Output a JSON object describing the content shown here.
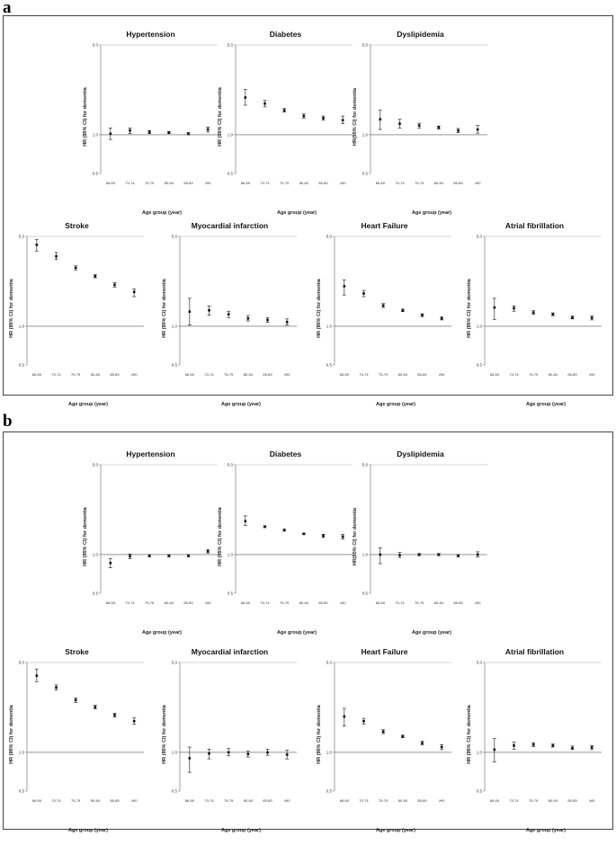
{
  "panels": [
    {
      "label": "a",
      "charts": [
        {
          "title": "Hypertension",
          "categories": [
            "66-69",
            "70-74",
            "75-79",
            "80-84",
            "85-89",
            "≥90"
          ],
          "hr": [
            1.02,
            1.08,
            1.05,
            1.04,
            1.02,
            1.1
          ],
          "lower": [
            0.92,
            1.02,
            1.02,
            1.02,
            1.0,
            1.05
          ],
          "upper": [
            1.13,
            1.13,
            1.08,
            1.06,
            1.04,
            1.15
          ]
        },
        {
          "title": "Diabetes",
          "categories": [
            "66-69",
            "70-74",
            "75-79",
            "80-84",
            "85-89",
            "≥90"
          ],
          "hr": [
            1.95,
            1.75,
            1.55,
            1.4,
            1.35,
            1.3
          ],
          "lower": [
            1.7,
            1.65,
            1.5,
            1.35,
            1.3,
            1.22
          ],
          "upper": [
            2.25,
            1.85,
            1.6,
            1.45,
            1.4,
            1.4
          ]
        },
        {
          "title": "Dyslipidemia",
          "categories": [
            "66-69",
            "70-74",
            "75-79",
            "80-84",
            "85-89",
            "≥90"
          ],
          "hr": [
            1.32,
            1.22,
            1.18,
            1.14,
            1.08,
            1.1
          ],
          "lower": [
            1.1,
            1.13,
            1.13,
            1.11,
            1.04,
            1.03
          ],
          "upper": [
            1.55,
            1.32,
            1.23,
            1.17,
            1.12,
            1.18
          ]
        }
      ],
      "row2": [
        {
          "title": "Stroke",
          "categories": [
            "66-69",
            "70-74",
            "75-79",
            "80-84",
            "85-89",
            "≥90"
          ],
          "hr": [
            4.3,
            3.5,
            2.85,
            2.45,
            2.1,
            1.85
          ],
          "lower": [
            3.85,
            3.3,
            2.75,
            2.38,
            2.02,
            1.7
          ],
          "upper": [
            4.75,
            3.75,
            2.95,
            2.52,
            2.18,
            1.95
          ]
        },
        {
          "title": "Myocardial infarction",
          "categories": [
            "66-69",
            "70-74",
            "75-79",
            "80-84",
            "85-89",
            "≥90"
          ],
          "hr": [
            1.3,
            1.33,
            1.24,
            1.15,
            1.12,
            1.08
          ],
          "lower": [
            1.02,
            1.22,
            1.17,
            1.1,
            1.07,
            1.02
          ],
          "upper": [
            1.65,
            1.44,
            1.31,
            1.21,
            1.17,
            1.14
          ]
        },
        {
          "title": "Heart Failure",
          "categories": [
            "66-69",
            "70-74",
            "75-79",
            "80-84",
            "85-89",
            "≥90"
          ],
          "hr": [
            2.05,
            1.8,
            1.45,
            1.33,
            1.22,
            1.15
          ],
          "lower": [
            1.75,
            1.7,
            1.4,
            1.3,
            1.19,
            1.12
          ],
          "upper": [
            2.3,
            1.9,
            1.5,
            1.36,
            1.25,
            1.18
          ]
        },
        {
          "title": "Atrial fibrillation",
          "categories": [
            "66-69",
            "70-74",
            "75-79",
            "80-84",
            "85-89",
            "≥90"
          ],
          "hr": [
            1.4,
            1.38,
            1.28,
            1.24,
            1.17,
            1.16
          ],
          "lower": [
            1.13,
            1.31,
            1.24,
            1.21,
            1.14,
            1.12
          ],
          "upper": [
            1.65,
            1.44,
            1.32,
            1.27,
            1.2,
            1.2
          ]
        }
      ]
    },
    {
      "label": "b",
      "charts": [
        {
          "title": "Hypertension",
          "categories": [
            "66-69",
            "70-74",
            "75-79",
            "80-84",
            "85-89",
            "≥90"
          ],
          "hr": [
            0.86,
            0.97,
            0.98,
            0.98,
            0.98,
            1.06
          ],
          "lower": [
            0.79,
            0.93,
            0.96,
            0.96,
            0.96,
            1.03
          ],
          "upper": [
            0.93,
            1.01,
            1.0,
            1.0,
            1.0,
            1.09
          ]
        },
        {
          "title": "Diabetes",
          "categories": [
            "66-69",
            "70-74",
            "75-79",
            "80-84",
            "85-89",
            "≥90"
          ],
          "hr": [
            1.82,
            1.65,
            1.55,
            1.45,
            1.4,
            1.38
          ],
          "lower": [
            1.68,
            1.62,
            1.52,
            1.43,
            1.36,
            1.32
          ],
          "upper": [
            2.0,
            1.68,
            1.58,
            1.47,
            1.44,
            1.44
          ]
        },
        {
          "title": "Dyslipidemia",
          "categories": [
            "66-69",
            "70-74",
            "75-79",
            "80-84",
            "85-89",
            "≥90"
          ],
          "hr": [
            1.0,
            0.99,
            1.0,
            1.0,
            0.98,
            1.0
          ],
          "lower": [
            0.85,
            0.95,
            0.98,
            0.98,
            0.96,
            0.96
          ],
          "upper": [
            1.13,
            1.04,
            1.02,
            1.02,
            1.0,
            1.05
          ]
        }
      ],
      "row2": [
        {
          "title": "Stroke",
          "categories": [
            "66-69",
            "70-74",
            "75-79",
            "80-84",
            "85-89",
            "≥90"
          ],
          "hr": [
            3.95,
            3.2,
            2.55,
            2.25,
            1.95,
            1.75
          ],
          "lower": [
            3.55,
            3.05,
            2.45,
            2.18,
            1.88,
            1.65
          ],
          "upper": [
            4.45,
            3.35,
            2.65,
            2.32,
            2.02,
            1.85
          ]
        },
        {
          "title": "Myocardial infarction",
          "categories": [
            "66-69",
            "70-74",
            "75-79",
            "80-84",
            "85-89",
            "≥90"
          ],
          "hr": [
            0.9,
            0.98,
            1.0,
            0.97,
            1.0,
            0.96
          ],
          "lower": [
            0.7,
            0.89,
            0.94,
            0.92,
            0.95,
            0.89
          ],
          "upper": [
            1.1,
            1.06,
            1.07,
            1.02,
            1.06,
            1.04
          ]
        },
        {
          "title": "Heart Failure",
          "categories": [
            "66-69",
            "70-74",
            "75-79",
            "80-84",
            "85-89",
            "≥90"
          ],
          "hr": [
            1.9,
            1.75,
            1.45,
            1.33,
            1.18,
            1.1
          ],
          "lower": [
            1.6,
            1.66,
            1.4,
            1.3,
            1.14,
            1.05
          ],
          "upper": [
            2.2,
            1.84,
            1.5,
            1.36,
            1.22,
            1.15
          ]
        },
        {
          "title": "Atrial fibrillation",
          "categories": [
            "66-69",
            "70-74",
            "75-79",
            "80-84",
            "85-89",
            "≥90"
          ],
          "hr": [
            1.05,
            1.13,
            1.15,
            1.13,
            1.08,
            1.09
          ],
          "lower": [
            0.84,
            1.06,
            1.11,
            1.1,
            1.05,
            1.05
          ],
          "upper": [
            1.28,
            1.2,
            1.19,
            1.16,
            1.12,
            1.13
          ]
        }
      ]
    }
  ],
  "axis": {
    "ylabel": "HR (95% CI) for dementia",
    "ylabel_dyslipidemia": "HR(95% CI) for dementia",
    "xlabel": "Age group (year)",
    "yticks": [
      "0.5",
      "1.0",
      "5.0"
    ],
    "ylim": [
      0.5,
      5.0
    ],
    "reference_line": 1.0,
    "scale": "log"
  },
  "chart_data": [
    {
      "type": "scatter",
      "panel": "a",
      "title": "Hypertension",
      "categories": [
        "66-69",
        "70-74",
        "75-79",
        "80-84",
        "85-89",
        "≥90"
      ],
      "series": [
        {
          "name": "HR",
          "values": [
            1.02,
            1.08,
            1.05,
            1.04,
            1.02,
            1.1
          ]
        }
      ],
      "xlabel": "Age group (year)",
      "ylabel": "HR (95% CI) for dementia",
      "ylim": [
        0.5,
        5.0
      ]
    },
    {
      "type": "scatter",
      "panel": "a",
      "title": "Diabetes",
      "categories": [
        "66-69",
        "70-74",
        "75-79",
        "80-84",
        "85-89",
        "≥90"
      ],
      "series": [
        {
          "name": "HR",
          "values": [
            1.95,
            1.75,
            1.55,
            1.4,
            1.35,
            1.3
          ]
        }
      ],
      "xlabel": "Age group (year)",
      "ylabel": "HR (95% CI) for dementia",
      "ylim": [
        0.5,
        5.0
      ]
    },
    {
      "type": "scatter",
      "panel": "a",
      "title": "Dyslipidemia",
      "categories": [
        "66-69",
        "70-74",
        "75-79",
        "80-84",
        "85-89",
        "≥90"
      ],
      "series": [
        {
          "name": "HR",
          "values": [
            1.32,
            1.22,
            1.18,
            1.14,
            1.08,
            1.1
          ]
        }
      ],
      "xlabel": "Age group (year)",
      "ylabel": "HR(95% CI) for dementia",
      "ylim": [
        0.5,
        5.0
      ]
    },
    {
      "type": "scatter",
      "panel": "a",
      "title": "Stroke",
      "categories": [
        "66-69",
        "70-74",
        "75-79",
        "80-84",
        "85-89",
        "≥90"
      ],
      "series": [
        {
          "name": "HR",
          "values": [
            4.3,
            3.5,
            2.85,
            2.45,
            2.1,
            1.85
          ]
        }
      ],
      "xlabel": "Age group (year)",
      "ylabel": "HR (95% CI) for dementia",
      "ylim": [
        0.5,
        5.0
      ]
    },
    {
      "type": "scatter",
      "panel": "a",
      "title": "Myocardial infarction",
      "categories": [
        "66-69",
        "70-74",
        "75-79",
        "80-84",
        "85-89",
        "≥90"
      ],
      "series": [
        {
          "name": "HR",
          "values": [
            1.3,
            1.33,
            1.24,
            1.15,
            1.12,
            1.08
          ]
        }
      ],
      "xlabel": "Age group (year)",
      "ylabel": "HR (95% CI) for dementia",
      "ylim": [
        0.5,
        5.0
      ]
    },
    {
      "type": "scatter",
      "panel": "a",
      "title": "Heart Failure",
      "categories": [
        "66-69",
        "70-74",
        "75-79",
        "80-84",
        "85-89",
        "≥90"
      ],
      "series": [
        {
          "name": "HR",
          "values": [
            2.05,
            1.8,
            1.45,
            1.33,
            1.22,
            1.15
          ]
        }
      ],
      "xlabel": "Age group (year)",
      "ylabel": "HR (95% CI) for dementia",
      "ylim": [
        0.5,
        5.0
      ]
    },
    {
      "type": "scatter",
      "panel": "a",
      "title": "Atrial fibrillation",
      "categories": [
        "66-69",
        "70-74",
        "75-79",
        "80-84",
        "85-89",
        "≥90"
      ],
      "series": [
        {
          "name": "HR",
          "values": [
            1.4,
            1.38,
            1.28,
            1.24,
            1.17,
            1.16
          ]
        }
      ],
      "xlabel": "Age group (year)",
      "ylabel": "HR (95% CI) for dementia",
      "ylim": [
        0.5,
        5.0
      ]
    },
    {
      "type": "scatter",
      "panel": "b",
      "title": "Hypertension",
      "categories": [
        "66-69",
        "70-74",
        "75-79",
        "80-84",
        "85-89",
        "≥90"
      ],
      "series": [
        {
          "name": "HR",
          "values": [
            0.86,
            0.97,
            0.98,
            0.98,
            0.98,
            1.06
          ]
        }
      ],
      "xlabel": "Age group (year)",
      "ylabel": "HR (95% CI) for dementia",
      "ylim": [
        0.5,
        5.0
      ]
    },
    {
      "type": "scatter",
      "panel": "b",
      "title": "Diabetes",
      "categories": [
        "66-69",
        "70-74",
        "75-79",
        "80-84",
        "85-89",
        "≥90"
      ],
      "series": [
        {
          "name": "HR",
          "values": [
            1.82,
            1.65,
            1.55,
            1.45,
            1.4,
            1.38
          ]
        }
      ],
      "xlabel": "Age group (year)",
      "ylabel": "HR (95% CI) for dementia",
      "ylim": [
        0.5,
        5.0
      ]
    },
    {
      "type": "scatter",
      "panel": "b",
      "title": "Dyslipidemia",
      "categories": [
        "66-69",
        "70-74",
        "75-79",
        "80-84",
        "85-89",
        "≥90"
      ],
      "series": [
        {
          "name": "HR",
          "values": [
            1.0,
            0.99,
            1.0,
            1.0,
            0.98,
            1.0
          ]
        }
      ],
      "xlabel": "Age group (year)",
      "ylabel": "HR(95% CI) for dementia",
      "ylim": [
        0.5,
        5.0
      ]
    },
    {
      "type": "scatter",
      "panel": "b",
      "title": "Stroke",
      "categories": [
        "66-69",
        "70-74",
        "75-79",
        "80-84",
        "85-89",
        "≥90"
      ],
      "series": [
        {
          "name": "HR",
          "values": [
            3.95,
            3.2,
            2.55,
            2.25,
            1.95,
            1.75
          ]
        }
      ],
      "xlabel": "Age group (year)",
      "ylabel": "HR (95% CI) for dementia",
      "ylim": [
        0.5,
        5.0
      ]
    },
    {
      "type": "scatter",
      "panel": "b",
      "title": "Myocardial infarction",
      "categories": [
        "66-69",
        "70-74",
        "75-79",
        "80-84",
        "85-89",
        "≥90"
      ],
      "series": [
        {
          "name": "HR",
          "values": [
            0.9,
            0.98,
            1.0,
            0.97,
            1.0,
            0.96
          ]
        }
      ],
      "xlabel": "Age group (year)",
      "ylabel": "HR (95% CI) for dementia",
      "ylim": [
        0.5,
        5.0
      ]
    },
    {
      "type": "scatter",
      "panel": "b",
      "title": "Heart Failure",
      "categories": [
        "66-69",
        "70-74",
        "75-79",
        "80-84",
        "85-89",
        "≥90"
      ],
      "series": [
        {
          "name": "HR",
          "values": [
            1.9,
            1.75,
            1.45,
            1.33,
            1.18,
            1.1
          ]
        }
      ],
      "xlabel": "Age group (year)",
      "ylabel": "HR (95% CI) for dementia",
      "ylim": [
        0.5,
        5.0
      ]
    },
    {
      "type": "scatter",
      "panel": "b",
      "title": "Atrial fibrillation",
      "categories": [
        "66-69",
        "70-74",
        "75-79",
        "80-84",
        "85-89",
        "≥90"
      ],
      "series": [
        {
          "name": "HR",
          "values": [
            1.05,
            1.13,
            1.15,
            1.13,
            1.08,
            1.09
          ]
        }
      ],
      "xlabel": "Age group (year)",
      "ylabel": "HR (95% CI) for dementia",
      "ylim": [
        0.5,
        5.0
      ]
    }
  ]
}
